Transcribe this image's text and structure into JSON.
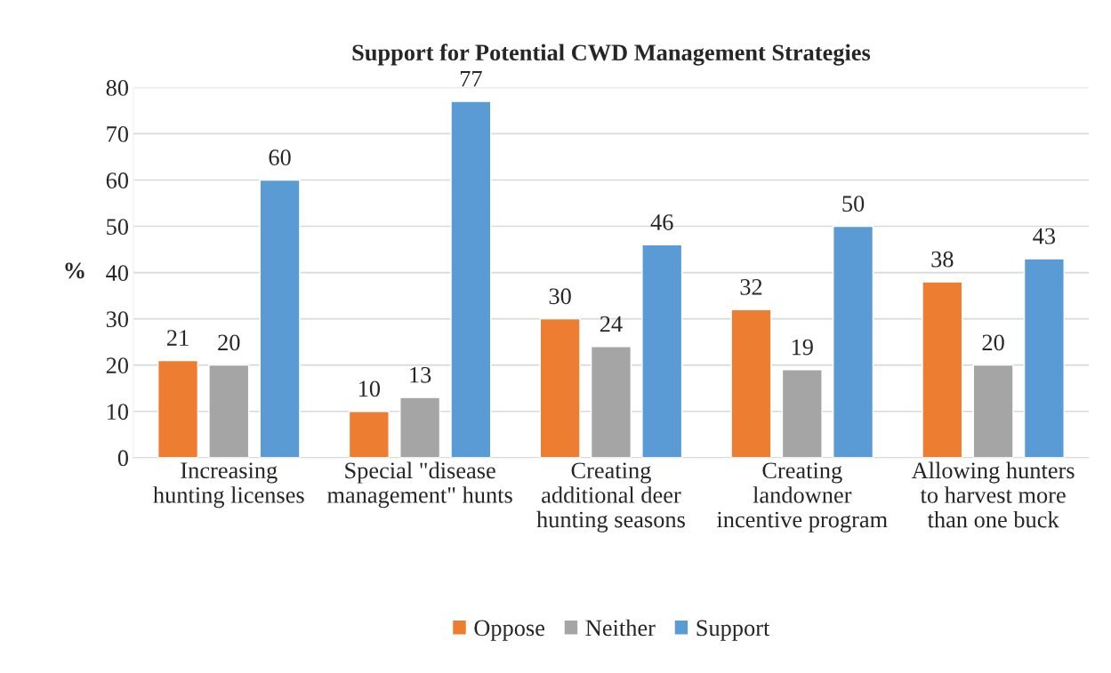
{
  "chart_data": {
    "type": "bar",
    "title": "Support for Potential CWD Management Strategies",
    "ylabel": "%",
    "categories": [
      "Increasing hunting licenses",
      "Special \"disease management\" hunts",
      "Creating additional deer hunting seasons",
      "Creating landowner incentive program",
      "Allowing hunters to harvest more than one buck"
    ],
    "series": [
      {
        "name": "Oppose",
        "color": "#ed7d31",
        "values": [
          21,
          10,
          30,
          32,
          38
        ]
      },
      {
        "name": "Neither",
        "color": "#a5a5a5",
        "values": [
          20,
          13,
          24,
          19,
          20
        ]
      },
      {
        "name": "Support",
        "color": "#5b9bd5",
        "values": [
          60,
          77,
          46,
          50,
          43
        ]
      }
    ],
    "ylim": [
      0,
      80
    ],
    "yticks": [
      0,
      10,
      20,
      30,
      40,
      50,
      60,
      70,
      80
    ],
    "grid": "y",
    "legend": "bottom",
    "data_labels": true
  }
}
